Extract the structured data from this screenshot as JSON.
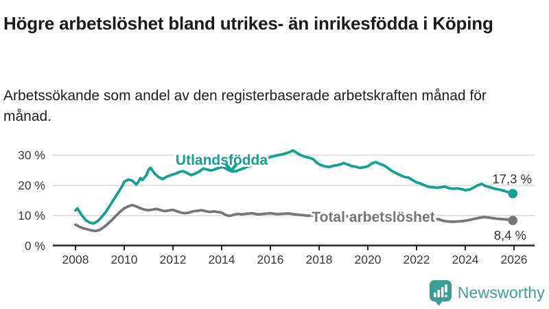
{
  "header": {
    "title": "Högre arbetslöshet bland utrikes- än inrikesfödda i Köping",
    "subtitle": "Arbetssökande som andel av den registerbaserade arbetskraften månad för månad."
  },
  "branding": {
    "name": "Newsworthy",
    "icon": "newsworthy-speech-bubble-bar-chart-icon",
    "color": "#3a9d96"
  },
  "colors": {
    "accent_teal": "#12a195",
    "series_gray": "#76767a",
    "gridline": "#d9d9d9",
    "axis": "#222222",
    "text_dark": "#333333"
  },
  "chart_data": {
    "type": "line",
    "title": "Högre arbetslöshet bland utrikes- än inrikesfödda i Köping",
    "subtitle": "Arbetssökande som andel av den registerbaserade arbetskraften månad för månad.",
    "unit": "%",
    "grid": "horizontal",
    "x_axis": {
      "ticks": [
        2008,
        2010,
        2012,
        2014,
        2016,
        2018,
        2020,
        2022,
        2024,
        2026
      ],
      "range": [
        2008,
        2026.9
      ]
    },
    "y_axis": {
      "ticks": [
        0,
        10,
        20,
        30
      ],
      "tick_suffix": " %",
      "range": [
        0,
        33
      ]
    },
    "series": [
      {
        "name": "Utlandsfödda",
        "color": "#12a195",
        "end_label": "17,3 %",
        "last_value": 17.3,
        "points": [
          [
            2008.0,
            11.7
          ],
          [
            2008.08,
            12.4
          ],
          [
            2008.25,
            10.2
          ],
          [
            2008.42,
            8.5
          ],
          [
            2008.58,
            7.7
          ],
          [
            2008.75,
            7.4
          ],
          [
            2008.92,
            8.2
          ],
          [
            2009.08,
            9.6
          ],
          [
            2009.25,
            11.3
          ],
          [
            2009.42,
            13.4
          ],
          [
            2009.58,
            15.5
          ],
          [
            2009.75,
            17.6
          ],
          [
            2009.92,
            19.8
          ],
          [
            2010.0,
            21.2
          ],
          [
            2010.17,
            21.9
          ],
          [
            2010.33,
            21.6
          ],
          [
            2010.5,
            20.3
          ],
          [
            2010.58,
            21.2
          ],
          [
            2010.67,
            22.4
          ],
          [
            2010.75,
            21.8
          ],
          [
            2010.92,
            23.5
          ],
          [
            2011.0,
            25.2
          ],
          [
            2011.08,
            25.8
          ],
          [
            2011.25,
            23.9
          ],
          [
            2011.42,
            22.7
          ],
          [
            2011.58,
            22.1
          ],
          [
            2011.75,
            22.9
          ],
          [
            2011.92,
            23.4
          ],
          [
            2012.08,
            23.8
          ],
          [
            2012.25,
            24.4
          ],
          [
            2012.42,
            24.7
          ],
          [
            2012.58,
            24.1
          ],
          [
            2012.75,
            23.4
          ],
          [
            2012.92,
            23.9
          ],
          [
            2013.08,
            24.6
          ],
          [
            2013.25,
            25.6
          ],
          [
            2013.42,
            25.2
          ],
          [
            2013.58,
            24.9
          ],
          [
            2013.75,
            25.4
          ],
          [
            2013.92,
            25.9
          ],
          [
            2014.08,
            26.0
          ],
          [
            2014.25,
            25.2
          ],
          [
            2014.42,
            24.6
          ],
          [
            2014.58,
            24.7
          ],
          [
            2014.75,
            25.2
          ],
          [
            2014.92,
            25.7
          ],
          [
            2015.08,
            26.3
          ],
          [
            2015.25,
            26.6
          ],
          [
            2015.5,
            27.2
          ],
          [
            2015.75,
            28.2
          ],
          [
            2016.0,
            29.4
          ],
          [
            2016.25,
            29.9
          ],
          [
            2016.5,
            30.3
          ],
          [
            2016.75,
            30.9
          ],
          [
            2016.92,
            31.6
          ],
          [
            2017.08,
            30.8
          ],
          [
            2017.25,
            30.0
          ],
          [
            2017.42,
            29.5
          ],
          [
            2017.58,
            29.2
          ],
          [
            2017.75,
            28.7
          ],
          [
            2017.92,
            27.4
          ],
          [
            2018.08,
            26.7
          ],
          [
            2018.25,
            26.3
          ],
          [
            2018.42,
            26.1
          ],
          [
            2018.58,
            26.5
          ],
          [
            2018.75,
            26.7
          ],
          [
            2018.92,
            27.1
          ],
          [
            2019.0,
            27.4
          ],
          [
            2019.17,
            26.9
          ],
          [
            2019.33,
            26.4
          ],
          [
            2019.5,
            26.2
          ],
          [
            2019.67,
            25.8
          ],
          [
            2019.83,
            26.0
          ],
          [
            2020.0,
            26.3
          ],
          [
            2020.17,
            27.3
          ],
          [
            2020.33,
            27.7
          ],
          [
            2020.5,
            27.1
          ],
          [
            2020.67,
            26.6
          ],
          [
            2020.83,
            25.7
          ],
          [
            2021.0,
            24.7
          ],
          [
            2021.17,
            24.0
          ],
          [
            2021.33,
            23.4
          ],
          [
            2021.5,
            22.8
          ],
          [
            2021.67,
            22.6
          ],
          [
            2021.83,
            21.8
          ],
          [
            2022.0,
            21.0
          ],
          [
            2022.17,
            20.6
          ],
          [
            2022.33,
            20.0
          ],
          [
            2022.5,
            19.5
          ],
          [
            2022.67,
            19.4
          ],
          [
            2022.83,
            19.2
          ],
          [
            2023.0,
            19.4
          ],
          [
            2023.17,
            19.6
          ],
          [
            2023.33,
            19.1
          ],
          [
            2023.5,
            18.9
          ],
          [
            2023.67,
            19.0
          ],
          [
            2023.83,
            18.8
          ],
          [
            2024.0,
            18.4
          ],
          [
            2024.17,
            18.6
          ],
          [
            2024.33,
            19.2
          ],
          [
            2024.5,
            20.0
          ],
          [
            2024.67,
            20.5
          ],
          [
            2024.83,
            19.8
          ],
          [
            2025.0,
            19.4
          ],
          [
            2025.17,
            19.0
          ],
          [
            2025.33,
            18.7
          ],
          [
            2025.5,
            18.4
          ],
          [
            2025.67,
            18.0
          ],
          [
            2025.83,
            17.6
          ],
          [
            2025.95,
            17.3
          ]
        ]
      },
      {
        "name": "Total arbetslöshet",
        "color": "#76767a",
        "end_label": "8,4 %",
        "last_value": 8.4,
        "points": [
          [
            2008.0,
            7.0
          ],
          [
            2008.17,
            6.3
          ],
          [
            2008.33,
            5.8
          ],
          [
            2008.5,
            5.4
          ],
          [
            2008.67,
            5.1
          ],
          [
            2008.83,
            4.9
          ],
          [
            2009.0,
            5.3
          ],
          [
            2009.17,
            6.2
          ],
          [
            2009.33,
            7.3
          ],
          [
            2009.5,
            8.6
          ],
          [
            2009.67,
            10.0
          ],
          [
            2009.83,
            11.3
          ],
          [
            2010.0,
            12.4
          ],
          [
            2010.17,
            13.1
          ],
          [
            2010.33,
            13.5
          ],
          [
            2010.5,
            13.0
          ],
          [
            2010.67,
            12.4
          ],
          [
            2010.83,
            12.0
          ],
          [
            2011.0,
            11.8
          ],
          [
            2011.17,
            12.0
          ],
          [
            2011.33,
            12.2
          ],
          [
            2011.5,
            11.8
          ],
          [
            2011.67,
            11.5
          ],
          [
            2011.83,
            11.7
          ],
          [
            2012.0,
            11.9
          ],
          [
            2012.17,
            11.4
          ],
          [
            2012.33,
            11.0
          ],
          [
            2012.5,
            10.8
          ],
          [
            2012.67,
            11.0
          ],
          [
            2012.83,
            11.4
          ],
          [
            2013.0,
            11.6
          ],
          [
            2013.17,
            11.8
          ],
          [
            2013.33,
            11.5
          ],
          [
            2013.5,
            11.2
          ],
          [
            2013.67,
            11.4
          ],
          [
            2013.83,
            11.2
          ],
          [
            2014.0,
            11.0
          ],
          [
            2014.17,
            10.2
          ],
          [
            2014.33,
            9.9
          ],
          [
            2014.5,
            10.3
          ],
          [
            2014.67,
            10.6
          ],
          [
            2014.83,
            10.4
          ],
          [
            2015.0,
            10.6
          ],
          [
            2015.25,
            10.8
          ],
          [
            2015.5,
            10.4
          ],
          [
            2015.75,
            10.6
          ],
          [
            2016.0,
            10.8
          ],
          [
            2016.25,
            10.5
          ],
          [
            2016.5,
            10.6
          ],
          [
            2016.75,
            10.7
          ],
          [
            2017.0,
            10.4
          ],
          [
            2017.25,
            10.2
          ],
          [
            2017.5,
            10.0
          ],
          [
            2017.75,
            10.1
          ],
          [
            2018.0,
            10.0
          ],
          [
            2018.25,
            9.8
          ],
          [
            2018.5,
            9.7
          ],
          [
            2018.75,
            9.8
          ],
          [
            2019.0,
            9.9
          ],
          [
            2019.25,
            9.7
          ],
          [
            2019.5,
            9.6
          ],
          [
            2019.75,
            9.7
          ],
          [
            2020.0,
            9.8
          ],
          [
            2020.25,
            10.3
          ],
          [
            2020.5,
            10.1
          ],
          [
            2020.75,
            9.9
          ],
          [
            2021.0,
            9.7
          ],
          [
            2021.25,
            9.4
          ],
          [
            2021.5,
            9.2
          ],
          [
            2021.75,
            9.0
          ],
          [
            2022.0,
            8.9
          ],
          [
            2022.25,
            8.8
          ],
          [
            2022.5,
            8.7
          ],
          [
            2022.75,
            8.8
          ],
          [
            2022.92,
            8.8
          ],
          [
            2023.08,
            8.3
          ],
          [
            2023.25,
            8.1
          ],
          [
            2023.42,
            8.0
          ],
          [
            2023.58,
            8.0
          ],
          [
            2023.75,
            8.1
          ],
          [
            2023.92,
            8.2
          ],
          [
            2024.08,
            8.4
          ],
          [
            2024.25,
            8.7
          ],
          [
            2024.42,
            9.0
          ],
          [
            2024.58,
            9.3
          ],
          [
            2024.75,
            9.5
          ],
          [
            2024.92,
            9.4
          ],
          [
            2025.08,
            9.2
          ],
          [
            2025.25,
            9.0
          ],
          [
            2025.42,
            8.9
          ],
          [
            2025.58,
            8.8
          ],
          [
            2025.75,
            8.7
          ],
          [
            2025.95,
            8.4
          ]
        ]
      }
    ]
  }
}
